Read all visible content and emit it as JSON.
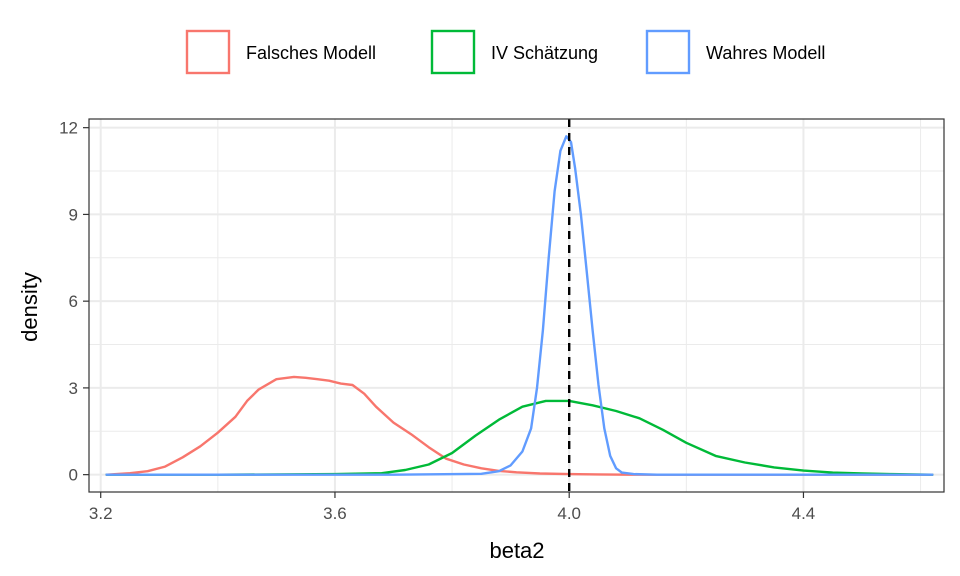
{
  "chart_data": {
    "type": "line",
    "xlabel": "beta2",
    "ylabel": "density",
    "xlim": [
      3.18,
      4.64
    ],
    "ylim": [
      -0.6,
      12.3
    ],
    "x_ticks": [
      3.2,
      3.6,
      4.0,
      4.4
    ],
    "x_tick_labels": [
      "3.2",
      "3.6",
      "4.0",
      "4.4"
    ],
    "x_minor_ticks": [
      3.4,
      3.8,
      4.2,
      4.6
    ],
    "y_ticks": [
      0,
      3,
      6,
      9,
      12
    ],
    "y_tick_labels": [
      "0",
      "3",
      "6",
      "9",
      "12"
    ],
    "y_minor_ticks": [
      1.5,
      4.5,
      7.5,
      10.5
    ],
    "grid": true,
    "legend_position": "top",
    "reference_line": {
      "x": 4.0,
      "style": "dashed",
      "color": "#000000"
    },
    "series": [
      {
        "name": "Falsches Modell",
        "color": "#F8766D",
        "x": [
          3.21,
          3.25,
          3.28,
          3.31,
          3.34,
          3.37,
          3.4,
          3.43,
          3.45,
          3.47,
          3.5,
          3.53,
          3.55,
          3.57,
          3.59,
          3.61,
          3.63,
          3.65,
          3.67,
          3.7,
          3.73,
          3.76,
          3.79,
          3.82,
          3.85,
          3.88,
          3.91,
          3.95,
          4.0,
          4.05,
          4.1,
          4.62
        ],
        "values": [
          0.0,
          0.05,
          0.12,
          0.28,
          0.6,
          0.98,
          1.45,
          2.0,
          2.55,
          2.95,
          3.3,
          3.38,
          3.35,
          3.3,
          3.25,
          3.15,
          3.1,
          2.8,
          2.35,
          1.8,
          1.4,
          0.95,
          0.55,
          0.35,
          0.22,
          0.13,
          0.08,
          0.04,
          0.02,
          0.01,
          0.0,
          0.0
        ]
      },
      {
        "name": "IV Schätzung",
        "color": "#00BA38",
        "x": [
          3.21,
          3.4,
          3.6,
          3.68,
          3.72,
          3.76,
          3.8,
          3.84,
          3.88,
          3.92,
          3.96,
          4.0,
          4.04,
          4.08,
          4.12,
          4.16,
          4.2,
          4.25,
          4.3,
          4.35,
          4.4,
          4.45,
          4.5,
          4.55,
          4.62
        ],
        "values": [
          0.0,
          0.0,
          0.02,
          0.05,
          0.16,
          0.35,
          0.75,
          1.35,
          1.9,
          2.35,
          2.55,
          2.55,
          2.4,
          2.2,
          1.95,
          1.55,
          1.1,
          0.65,
          0.42,
          0.25,
          0.14,
          0.07,
          0.04,
          0.02,
          0.0
        ]
      },
      {
        "name": "Wahres Modell",
        "color": "#619CFF",
        "x": [
          3.21,
          3.7,
          3.85,
          3.88,
          3.9,
          3.92,
          3.935,
          3.945,
          3.955,
          3.965,
          3.975,
          3.985,
          3.995,
          4.003,
          4.01,
          4.02,
          4.03,
          4.04,
          4.05,
          4.06,
          4.07,
          4.08,
          4.09,
          4.11,
          4.15,
          4.62
        ],
        "values": [
          0.0,
          0.0,
          0.03,
          0.12,
          0.32,
          0.8,
          1.6,
          3.0,
          5.0,
          7.5,
          9.8,
          11.2,
          11.7,
          11.5,
          10.6,
          9.0,
          7.0,
          5.0,
          3.1,
          1.6,
          0.65,
          0.22,
          0.07,
          0.02,
          0.0,
          0.0
        ]
      }
    ]
  }
}
